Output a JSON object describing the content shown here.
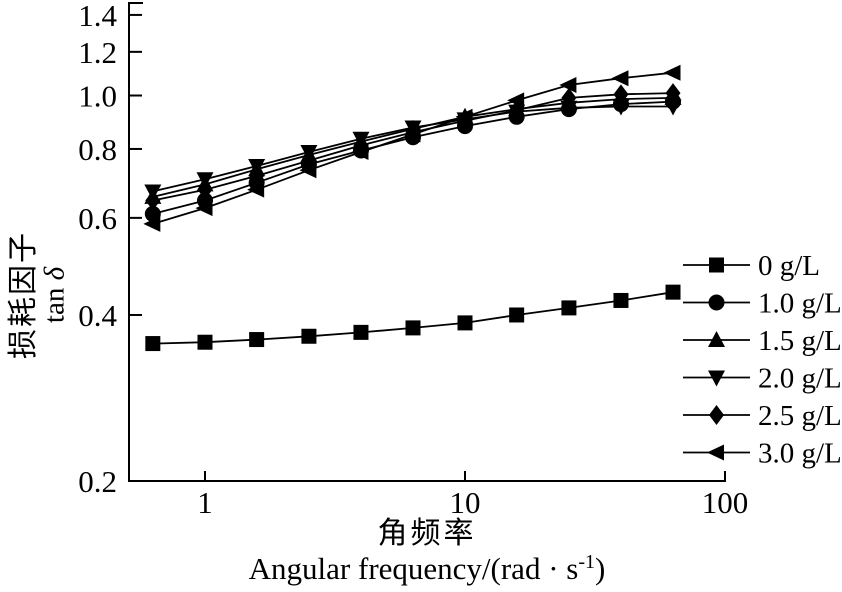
{
  "chart_data": {
    "type": "line",
    "title": "",
    "color": "#000000",
    "background": "#ffffff",
    "legend_position": "right",
    "grid": false,
    "x_axis": {
      "label_zh": "角频率",
      "label_en_main": "Angular frequency/(rad · s",
      "label_en_sup": "-1",
      "label_en_close": ")",
      "scale": "log",
      "range": [
        0.5,
        100
      ],
      "ticks": [
        1,
        10,
        100
      ],
      "tick_labels": [
        "1",
        "10",
        "100"
      ]
    },
    "y_axis": {
      "label_zh": "损耗因子",
      "label_en_main": "tan ",
      "label_en_symbol": "δ",
      "scale": "log",
      "range": [
        0.2,
        1.47
      ],
      "ticks": [
        0.2,
        0.4,
        0.6,
        0.8,
        1.0,
        1.2,
        1.4
      ],
      "tick_labels": [
        "0.2",
        "0.4",
        "0.6",
        "0.8",
        "1.0",
        "1.2",
        "1.4"
      ]
    },
    "x": [
      0.63,
      1.0,
      1.58,
      2.51,
      3.98,
      6.31,
      10,
      15.8,
      25.1,
      39.8,
      63.1
    ],
    "series": [
      {
        "name": "0 g/L",
        "marker": "square",
        "values": [
          0.355,
          0.357,
          0.361,
          0.366,
          0.372,
          0.379,
          0.387,
          0.4,
          0.412,
          0.425,
          0.44
        ]
      },
      {
        "name": "1.0 g/L",
        "marker": "circle",
        "values": [
          0.61,
          0.645,
          0.695,
          0.75,
          0.795,
          0.84,
          0.88,
          0.915,
          0.945,
          0.965,
          0.975
        ]
      },
      {
        "name": "1.5 g/L",
        "marker": "triangle-up",
        "values": [
          0.655,
          0.69,
          0.735,
          0.78,
          0.825,
          0.87,
          0.915,
          0.945,
          0.97,
          0.985,
          0.99
        ]
      },
      {
        "name": "2.0 g/L",
        "marker": "triangle-down",
        "values": [
          0.67,
          0.705,
          0.745,
          0.79,
          0.835,
          0.875,
          0.905,
          0.935,
          0.95,
          0.955,
          0.955
        ]
      },
      {
        "name": "2.5 g/L",
        "marker": "diamond",
        "values": [
          0.645,
          0.675,
          0.715,
          0.762,
          0.812,
          0.858,
          0.9,
          0.94,
          0.99,
          1.005,
          1.01
        ]
      },
      {
        "name": "3.0 g/L",
        "marker": "triangle-left",
        "values": [
          0.585,
          0.625,
          0.675,
          0.732,
          0.79,
          0.85,
          0.915,
          0.98,
          1.045,
          1.075,
          1.1
        ]
      }
    ]
  }
}
